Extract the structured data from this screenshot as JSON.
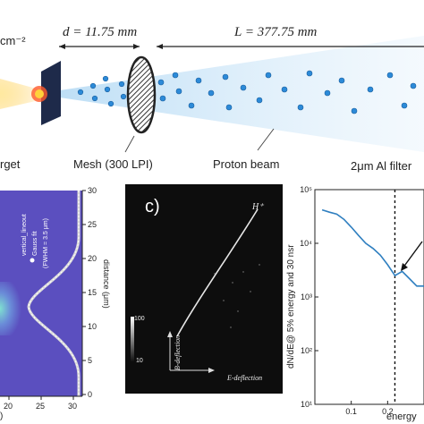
{
  "top": {
    "fluence_unit": "cm⁻²",
    "d_label": "d = 11.75 mm",
    "L_label": "L = 377.75 mm",
    "target_label": "rget",
    "mesh_label": "Mesh (300 LPI)",
    "proton_beam_label": "Proton beam",
    "filter_label": "2μm Al filter"
  },
  "panel_a": {
    "legend": [
      "vertical_lineout",
      "Gauss fit",
      "(FWHM = 3.5 μm)"
    ],
    "right_axis_label": "distance (μm)",
    "right_ticks": [
      "30",
      "25",
      "20",
      "15",
      "10",
      "5",
      "0"
    ],
    "bottom_ticks": [
      "20",
      "25",
      "30"
    ],
    "bottom_label_fragment": ")",
    "colors": {
      "background": "#5b4fbf",
      "peak": "#7fe0d0"
    }
  },
  "panel_c": {
    "label": "c)",
    "species_label": "H⁺",
    "colorbar_ticks": [
      "100",
      "10"
    ],
    "y_axis_label": "B-deflection",
    "x_axis_label": "E-deflection"
  },
  "chart_data": {
    "type": "line",
    "ylabel": "dN/dE@ 5% energy and 30 nsr",
    "xlabel": "energy",
    "yscale": "log",
    "ylim": [
      100,
      100000
    ],
    "y_ticks": [
      "10⁵",
      "10⁴",
      "10³",
      "10²",
      "10¹"
    ],
    "x_ticks": [
      "0.1",
      "0.2"
    ],
    "dashed_line_x": 0.22,
    "series": [
      {
        "color": "#2f7fc0",
        "x": [
          0.02,
          0.04,
          0.06,
          0.08,
          0.1,
          0.12,
          0.14,
          0.16,
          0.18,
          0.2,
          0.22,
          0.24,
          0.26,
          0.28,
          0.3
        ],
        "y": [
          42000,
          38000,
          35000,
          28000,
          20000,
          14000,
          10000,
          8000,
          6000,
          4000,
          2500,
          3000,
          2200,
          1600,
          1600
        ]
      }
    ]
  }
}
